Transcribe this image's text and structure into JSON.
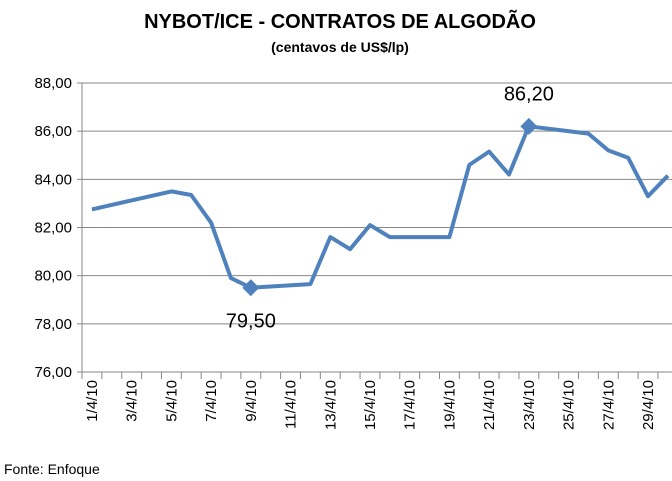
{
  "chart_data": {
    "type": "line",
    "title": "NYBOT/ICE - CONTRATOS DE ALGODÃO",
    "subtitle": "(centavos de US$/lp)",
    "source": "Fonte: Enfoque",
    "x": [
      "1/4/10",
      "5/4/10",
      "6/4/10",
      "7/4/10",
      "8/4/10",
      "9/4/10",
      "12/4/10",
      "13/4/10",
      "14/4/10",
      "15/4/10",
      "16/4/10",
      "19/4/10",
      "20/4/10",
      "21/4/10",
      "22/4/10",
      "23/4/10",
      "26/4/10",
      "27/4/10",
      "28/4/10",
      "29/4/10",
      "30/4/10"
    ],
    "xticks": [
      "1/4/10",
      "3/4/10",
      "5/4/10",
      "7/4/10",
      "9/4/10",
      "11/4/10",
      "13/4/10",
      "15/4/10",
      "17/4/10",
      "19/4/10",
      "21/4/10",
      "23/4/10",
      "25/4/10",
      "27/4/10",
      "29/4/10"
    ],
    "series": [
      {
        "name": null,
        "color": "#4f81bd",
        "values": [
          82.75,
          83.5,
          83.35,
          82.2,
          79.9,
          79.5,
          79.65,
          81.6,
          81.1,
          82.1,
          81.6,
          81.6,
          84.6,
          85.15,
          84.2,
          86.2,
          85.9,
          85.2,
          84.9,
          83.3,
          84.15
        ],
        "value_labels": [
          null,
          null,
          null,
          null,
          null,
          "79,50",
          null,
          null,
          null,
          null,
          null,
          null,
          null,
          null,
          null,
          "86,20",
          null,
          null,
          null,
          null,
          null
        ]
      }
    ],
    "ylim": [
      76,
      88
    ],
    "yticks": [
      {
        "value": 76,
        "label": "76,00"
      },
      {
        "value": 78,
        "label": "78,00"
      },
      {
        "value": 80,
        "label": "80,00"
      },
      {
        "value": 82,
        "label": "82,00"
      },
      {
        "value": 84,
        "label": "84,00"
      },
      {
        "value": 86,
        "label": "86,00"
      },
      {
        "value": 88,
        "label": "88,00"
      }
    ],
    "grid": true
  }
}
